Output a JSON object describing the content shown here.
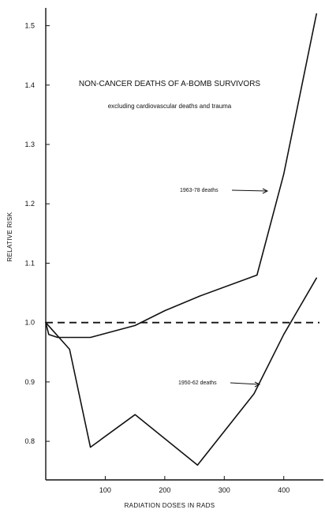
{
  "chart_data": {
    "type": "line",
    "title": "NON-CANCER DEATHS OF A-BOMB SURVIVORS",
    "subtitle": "excluding cardiovascular deaths and trauma",
    "xlabel": "RADIATION DOSES IN RADS",
    "ylabel": "RELATIVE RISK",
    "xlim": [
      0,
      460
    ],
    "ylim": [
      0.735,
      1.53
    ],
    "x_ticks": [
      100,
      200,
      300,
      400
    ],
    "y_ticks": [
      0.8,
      0.9,
      1.0,
      1.1,
      1.2,
      1.3,
      1.4,
      1.5
    ],
    "x_tick_labels": [
      "100",
      "200",
      "300",
      "400"
    ],
    "y_tick_labels": [
      "0.8",
      "0.9",
      "1.0",
      "1.1",
      "1.2",
      "1.3",
      "1.4",
      "1.5"
    ],
    "grid": false,
    "series": [
      {
        "name": "1963-78 deaths",
        "color": "#111111",
        "x": [
          0,
          5,
          20,
          75,
          150,
          200,
          260,
          355,
          400,
          455
        ],
        "y": [
          1.0,
          0.98,
          0.975,
          0.975,
          0.995,
          1.02,
          1.045,
          1.08,
          1.25,
          1.52
        ]
      },
      {
        "name": "1950-62 deaths",
        "color": "#111111",
        "x": [
          0,
          40,
          75,
          150,
          255,
          350,
          400,
          455
        ],
        "y": [
          1.0,
          0.955,
          0.79,
          0.845,
          0.76,
          0.88,
          0.98,
          1.075
        ]
      }
    ],
    "reference_line": {
      "y": 1.0,
      "style": "dashed"
    },
    "annotations": [
      {
        "text": "1963-78 deaths",
        "series": "1963-78 deaths"
      },
      {
        "text": "1950-62 deaths",
        "series": "1950-62 deaths"
      }
    ]
  }
}
